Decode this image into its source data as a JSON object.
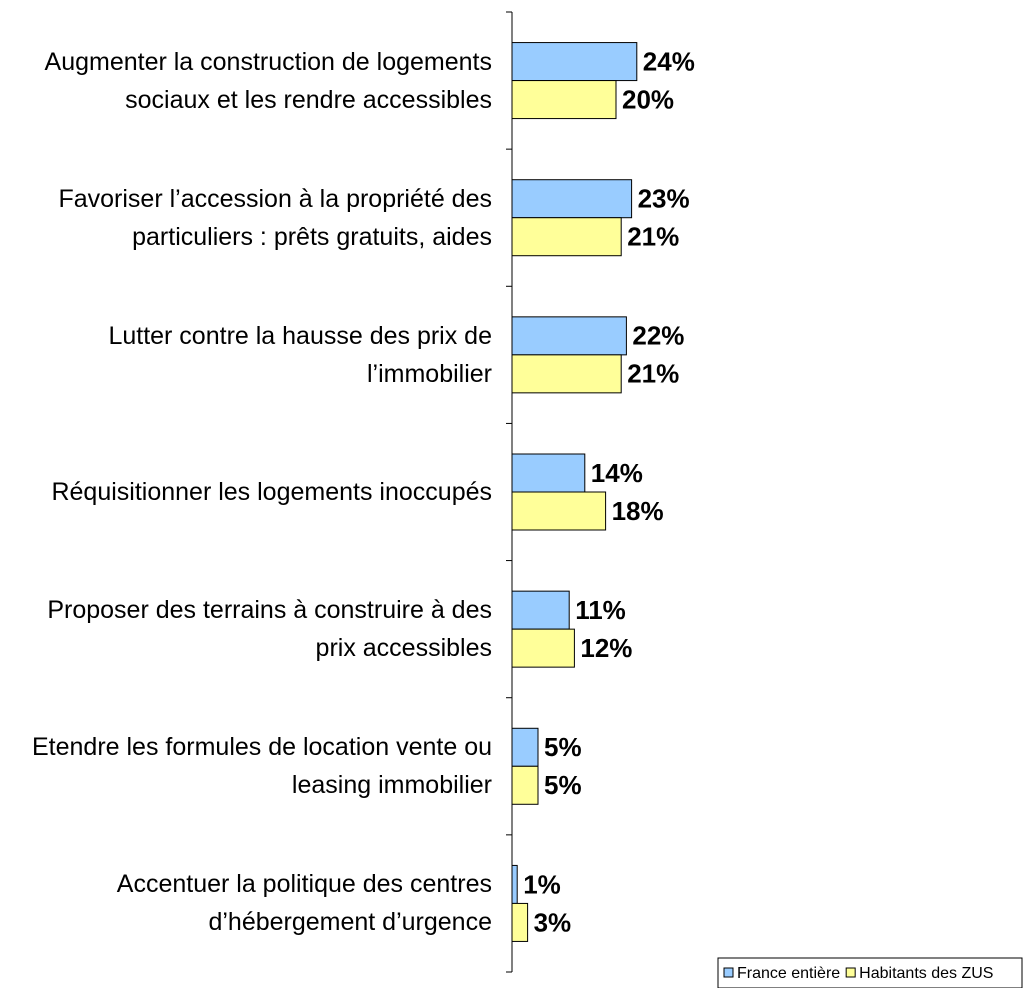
{
  "chart_data": {
    "type": "hbar",
    "categories": [
      "Augmenter la construction de logements\nsociaux et les rendre accessibles",
      "Favoriser l’accession à la propriété des\nparticuliers : prêts gratuits, aides",
      "Lutter contre la hausse des prix de\nl’immobilier",
      "Réquisitionner les logements inoccupés",
      "Proposer des terrains à construire à des\nprix accessibles",
      "Etendre les formules de location vente ou\nleasing immobilier",
      "Accentuer la politique des centres\nd’hébergement d’urgence"
    ],
    "series": [
      {
        "name": "France entière",
        "color": "#99ccff",
        "values": [
          24,
          23,
          22,
          14,
          11,
          5,
          1
        ],
        "value_labels": [
          "24%",
          "23%",
          "22%",
          "14%",
          "11%",
          "5%",
          "1%"
        ]
      },
      {
        "name": "Habitants des ZUS",
        "color": "#ffff99",
        "values": [
          20,
          21,
          21,
          18,
          12,
          5,
          3
        ],
        "value_labels": [
          "20%",
          "21%",
          "21%",
          "18%",
          "12%",
          "5%",
          "3%"
        ]
      }
    ],
    "xlim": [
      0,
      25
    ],
    "legend": "bottom-right"
  }
}
